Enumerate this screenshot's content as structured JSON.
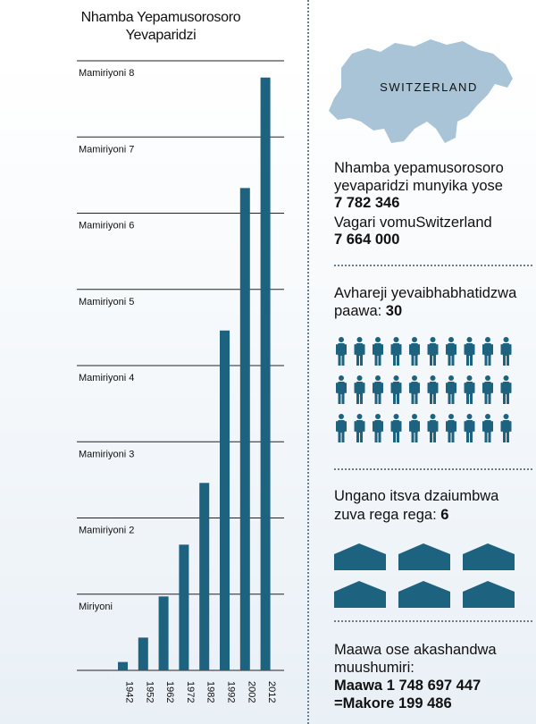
{
  "chart_data": {
    "type": "bar",
    "title": "Nhamba Yepamusorosoro Yevaparidzi",
    "categories": [
      "1942",
      "1952",
      "1962",
      "1972",
      "1982",
      "1992",
      "2002",
      "2012"
    ],
    "values": [
      110000,
      430000,
      970000,
      1650000,
      2460000,
      4460000,
      6330000,
      7780000
    ],
    "ylim": [
      0,
      8000000
    ],
    "gridlines": [
      1000000,
      2000000,
      3000000,
      4000000,
      5000000,
      6000000,
      7000000,
      8000000
    ],
    "tick_labels": [
      "Miriyoni",
      "Mamiriyoni 2",
      "Mamiriyoni 3",
      "Mamiriyoni 4",
      "Mamiriyoni 5",
      "Mamiriyoni 6",
      "Mamiriyoni 7",
      "Mamiriyoni 8"
    ],
    "bar_color": "#1d6380",
    "grid": true
  },
  "country": {
    "name": "SWITZERLAND",
    "map_color": "#a9c4d6"
  },
  "stats": {
    "publishers_line1": "Nhamba yepamusorosoro",
    "publishers_line2": "yevaparidzi munyika yose",
    "publishers_value": "7 782 346",
    "population_label": "Vagari vomuSwitzerland",
    "population_value": "7 664 000",
    "baptized_line1": "Avhareji yevaibhabhatidzwa",
    "baptized_line2_prefix": "paawa: ",
    "baptized_value": "30",
    "congregations_line1": "Ungano itsva dzaiumbwa",
    "congregations_line2_prefix": "zuva rega rega: ",
    "congregations_value": "6",
    "hours_line1": "Maawa ose akashandwa",
    "hours_line2": "muushumiri:",
    "hours_value": "Maawa 1 748 697 447",
    "years_value": "=Makore 199 486"
  },
  "icons": {
    "person_icon": "person-icon",
    "person_count": 30,
    "house_icon": "kingdom-hall-icon",
    "house_count": 6,
    "icon_color": "#1d6380"
  }
}
